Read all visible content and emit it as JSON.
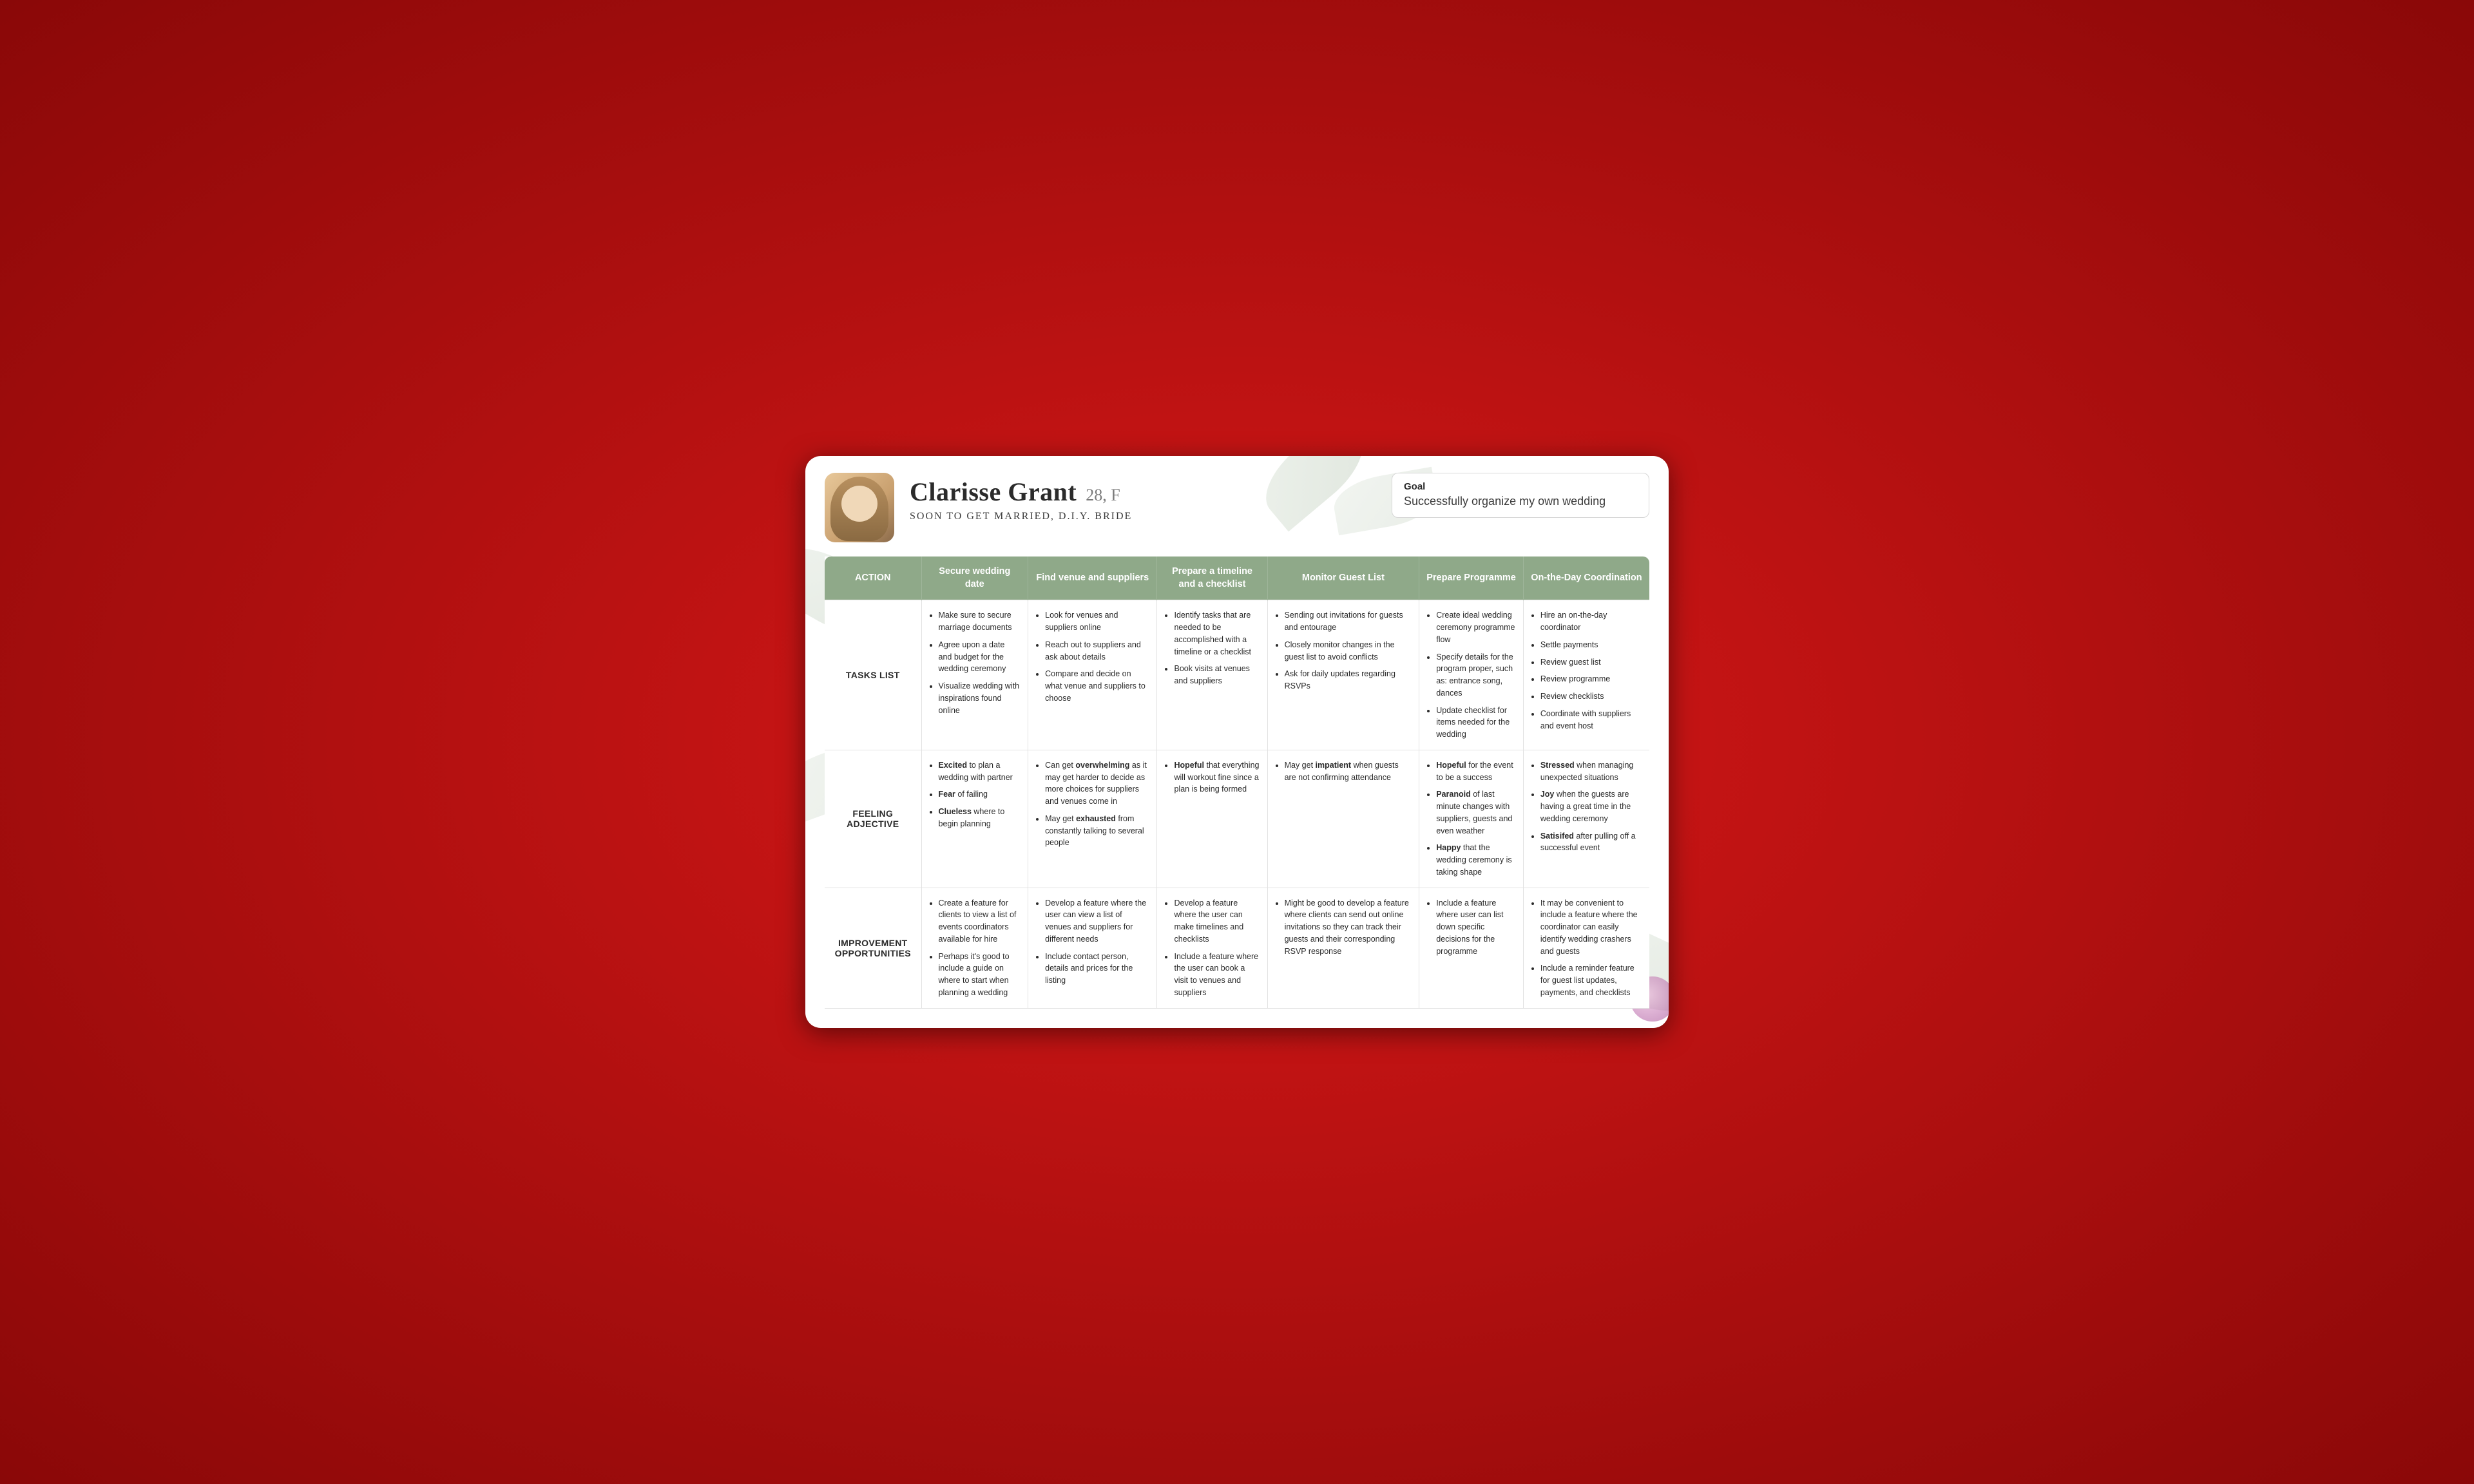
{
  "persona": {
    "name": "Clarisse Grant",
    "age_gender": "28, F",
    "subtitle": "SOON TO GET MARRIED, D.I.Y. BRIDE"
  },
  "goal": {
    "label": "Goal",
    "text": "Successfully organize my own wedding"
  },
  "colors": {
    "header_bg": "#8fa989",
    "header_text": "#ffffff",
    "border": "#e2e2e2",
    "body_text": "#2b2b2b",
    "card_bg": "#ffffff",
    "page_bg": "#b01010"
  },
  "table": {
    "col_headers": [
      "ACTION",
      "Secure wedding date",
      "Find venue and suppliers",
      "Prepare a timeline and a checklist",
      "Monitor Guest List",
      "Prepare Programme",
      "On-the-Day Coordination"
    ],
    "row_headers": [
      "TASKS LIST",
      "FEELING ADJECTIVE",
      "IMPROVEMENT OPPORTUNITIES"
    ],
    "tasks": {
      "c1": [
        "Make sure to secure marriage documents",
        "Agree upon a date and budget for the wedding ceremony",
        "Visualize wedding with inspirations found online"
      ],
      "c2": [
        "Look for venues and suppliers online",
        "Reach out to suppliers and ask about details",
        "Compare and decide on what venue and suppliers to choose"
      ],
      "c3": [
        "Identify tasks that are needed to be accomplished with a timeline or a checklist",
        "Book visits at venues and suppliers"
      ],
      "c4": [
        "Sending out invitations for guests and entourage",
        "Closely monitor changes in the guest list to avoid conflicts",
        "Ask for daily updates regarding RSVPs"
      ],
      "c5": [
        "Create ideal wedding ceremony programme flow",
        "Specify details for the program proper, such as: entrance song, dances",
        "Update checklist for items needed for the wedding"
      ],
      "c6": [
        "Hire an on-the-day coordinator",
        "Settle payments",
        "Review guest list",
        "Review programme",
        "Review checklists",
        "Coordinate with suppliers and event host"
      ]
    },
    "feeling": {
      "c1": [
        "<b>Excited</b> to plan a wedding with partner",
        "<b>Fear</b> of failing",
        "<b>Clueless</b> where to begin planning"
      ],
      "c2": [
        "Can get <b>overwhelming</b> as it may get harder to decide as more choices for suppliers and venues come in",
        "May get <b>exhausted</b> from constantly talking to several people"
      ],
      "c3": [
        "<b>Hopeful</b> that everything will workout fine since a plan is being formed"
      ],
      "c4": [
        "May get <b>impatient</b> when guests are not confirming attendance"
      ],
      "c5": [
        "<b>Hopeful</b> for the event to be a success",
        "<b>Paranoid</b> of last minute changes with suppliers, guests and even weather",
        "<b>Happy</b> that the wedding ceremony is taking shape"
      ],
      "c6": [
        "<b>Stressed</b> when managing unexpected situations",
        "<b>Joy</b> when the guests are having a great time in the wedding ceremony",
        "<b>Satisifed</b> after pulling off a successful event"
      ]
    },
    "improve": {
      "c1": [
        "Create a feature for clients to view a list of events coordinators available for hire",
        "Perhaps it's good to include a guide on where to start when planning a wedding"
      ],
      "c2": [
        "Develop a feature where the user can view a list of venues and suppliers for different needs",
        "Include contact person, details and prices for the listing"
      ],
      "c3": [
        "Develop a feature where the user can make timelines and checklists",
        "Include a feature where the user can book a visit to venues and suppliers"
      ],
      "c4": [
        "Might be good to develop a feature where clients can send out online invitations so they can track their guests and their corresponding RSVP response"
      ],
      "c5": [
        "Include a feature where user can list down specific decisions for the programme"
      ],
      "c6": [
        "It may be convenient to include a feature where the coordinator can easily identify wedding crashers and guests",
        "Include a reminder feature for guest list updates, payments, and checklists"
      ]
    }
  }
}
